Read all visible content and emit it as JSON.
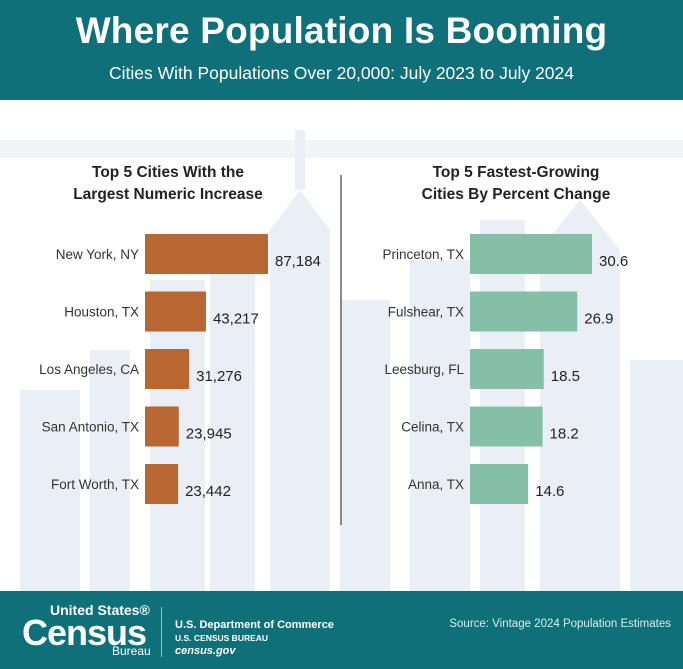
{
  "header": {
    "title": "Where Population Is Booming",
    "subtitle": "Cities With Populations Over 20,000: July 2023 to July 2024"
  },
  "colors": {
    "header_bg": "#10707a",
    "left_bar": "#b86733",
    "right_bar": "#86bfa8",
    "skyline": "#e8eef3"
  },
  "chart_data": [
    {
      "type": "bar",
      "orientation": "horizontal",
      "title": "Top 5 Cities With the Largest Numeric Increase",
      "title_lines": [
        "Top 5 Cities With the",
        "Largest Numeric Increase"
      ],
      "categories": [
        "New York, NY",
        "Houston, TX",
        "Los Angeles, CA",
        "San Antonio, TX",
        "Fort Worth, TX"
      ],
      "values": [
        87184,
        43217,
        31276,
        23945,
        23442
      ],
      "labels": [
        "87,184",
        "43,217",
        "31,276",
        "23,945",
        "23,442"
      ]
    },
    {
      "type": "bar",
      "orientation": "horizontal",
      "title": "Top 5 Fastest-Growing Cities By Percent Change",
      "title_lines": [
        "Top 5 Fastest-Growing",
        "Cities By Percent Change"
      ],
      "categories": [
        "Princeton, TX",
        "Fulshear, TX",
        "Leesburg, FL",
        "Celina, TX",
        "Anna, TX"
      ],
      "values": [
        30.6,
        26.9,
        18.5,
        18.2,
        14.6
      ],
      "labels": [
        "30.6",
        "26.9",
        "18.5",
        "18.2",
        "14.6"
      ]
    }
  ],
  "footer": {
    "logo_top": "United States®",
    "logo_main": "Census",
    "logo_bureau": "Bureau",
    "dept": "U.S. Department of Commerce",
    "bureau": "U.S. CENSUS BUREAU",
    "url": "census.gov",
    "source": "Source: Vintage 2024 Population Estimates"
  }
}
